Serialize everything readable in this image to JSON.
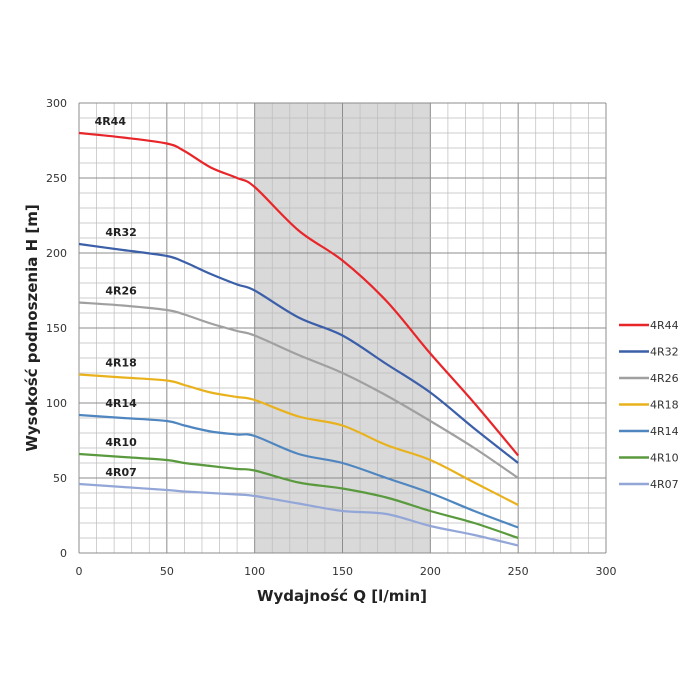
{
  "chart_data": {
    "type": "line",
    "title": "",
    "xlabel": "Wydajność Q [l/min]",
    "ylabel": "Wysokość podnoszenia H [m]",
    "xlim": [
      0,
      300
    ],
    "ylim": [
      0,
      300
    ],
    "xticks": [
      0,
      50,
      100,
      150,
      200,
      250,
      300
    ],
    "yticks": [
      0,
      50,
      100,
      150,
      200,
      250,
      300
    ],
    "grid": true,
    "minor_grid_step": 10,
    "shaded_range_x": [
      100,
      200
    ],
    "legend_position": "right",
    "x": [
      0,
      25,
      50,
      60,
      75,
      90,
      100,
      125,
      150,
      175,
      200,
      225,
      250
    ],
    "series": [
      {
        "name": "4R44",
        "color": "#e8262a",
        "values": [
          280,
          277,
          273,
          268,
          257,
          250,
          244,
          215,
          195,
          168,
          133,
          100,
          65
        ]
      },
      {
        "name": "4R32",
        "color": "#3b5fa8",
        "values": [
          206,
          202,
          198,
          194,
          186,
          179,
          175,
          157,
          145,
          126,
          107,
          83,
          60
        ]
      },
      {
        "name": "4R26",
        "color": "#a0a0a0",
        "values": [
          167,
          165,
          162,
          159,
          153,
          148,
          145,
          132,
          120,
          105,
          88,
          70,
          50
        ]
      },
      {
        "name": "4R18",
        "color": "#e9b21d",
        "values": [
          119,
          117,
          115,
          112,
          107,
          104,
          102,
          91,
          85,
          72,
          62,
          47,
          32
        ]
      },
      {
        "name": "4R14",
        "color": "#4f86c0",
        "values": [
          92,
          90,
          88,
          85,
          81,
          79,
          78,
          66,
          60,
          50,
          40,
          28,
          17
        ]
      },
      {
        "name": "4R10",
        "color": "#5a9a3e",
        "values": [
          66,
          64,
          62,
          60,
          58,
          56,
          55,
          47,
          43,
          37,
          28,
          20,
          10
        ]
      },
      {
        "name": "4R07",
        "color": "#93a6d8",
        "values": [
          46,
          44,
          42,
          41,
          40,
          39,
          38,
          33,
          28,
          26,
          18,
          12,
          5
        ]
      }
    ]
  }
}
